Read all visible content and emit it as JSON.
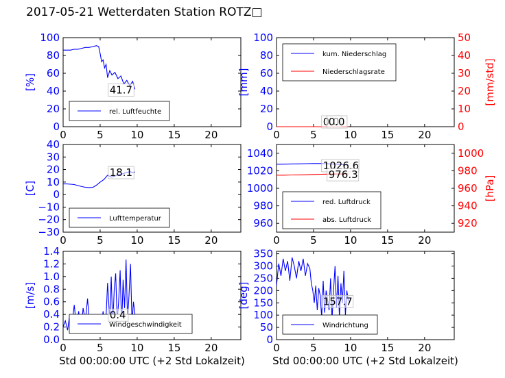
{
  "title": "2017-05-21 Wetterdaten Station ROTZ□",
  "colors": {
    "left_axis": "#0000ff",
    "right_axis": "#ff0000",
    "line1": "#0000ff",
    "line2": "#ff0000"
  },
  "chart_data": [
    {
      "id": "humidity",
      "type": "line",
      "ylabel": "[%]",
      "xlim": [
        0,
        24
      ],
      "ylim": [
        0,
        100
      ],
      "xticks": [
        "0",
        "5",
        "10",
        "15",
        "20"
      ],
      "yticks": [
        "0",
        "20",
        "40",
        "60",
        "80",
        "100"
      ],
      "legend_loc": "lower-left",
      "annotation": "41.7",
      "series": [
        {
          "name": "rel. Luftfeuchte",
          "color": "#0000ff",
          "x": [
            0,
            0.5,
            1,
            1.5,
            2,
            2.5,
            3,
            3.5,
            4,
            4.5,
            4.8,
            5.0,
            5.2,
            5.4,
            5.6,
            5.8,
            6.0,
            6.3,
            6.6,
            7.0,
            7.4,
            7.8,
            8.2,
            8.6,
            9.0,
            9.4,
            9.7
          ],
          "y": [
            86,
            86,
            86,
            87,
            87,
            88,
            89,
            89,
            90,
            91,
            90,
            82,
            73,
            75,
            66,
            70,
            55,
            63,
            58,
            61,
            54,
            57,
            48,
            52,
            46,
            51,
            42
          ]
        }
      ]
    },
    {
      "id": "precipitation",
      "type": "line",
      "ylabel": "[mm]",
      "ylabel_right": "[mm/std]",
      "xlim": [
        0,
        24
      ],
      "ylim": [
        0,
        100
      ],
      "ylim_right": [
        0,
        50
      ],
      "xticks": [
        "0",
        "5",
        "10",
        "15",
        "20"
      ],
      "yticks": [
        "0",
        "20",
        "40",
        "60",
        "80",
        "100"
      ],
      "yticks_right": [
        "0",
        "10",
        "20",
        "30",
        "40",
        "50"
      ],
      "legend_loc": "upper-left",
      "annotation": "0.0",
      "annotation2": "0.0",
      "series": [
        {
          "name": "kum. Niederschlag",
          "color": "#0000ff",
          "axis": "left",
          "x": [
            0,
            9.7
          ],
          "y": [
            0,
            0
          ]
        },
        {
          "name": "Niederschlagsrate",
          "color": "#ff0000",
          "axis": "right",
          "x": [
            0,
            9.7
          ],
          "y": [
            0,
            0
          ]
        }
      ]
    },
    {
      "id": "temperature",
      "type": "line",
      "ylabel": "[C]",
      "xlim": [
        0,
        24
      ],
      "ylim": [
        -30,
        40
      ],
      "xticks": [
        "0",
        "5",
        "10",
        "15",
        "20"
      ],
      "yticks": [
        "−30",
        "−20",
        "−10",
        "0",
        "10",
        "20",
        "30",
        "40"
      ],
      "legend_loc": "lower-left",
      "annotation": "18.1",
      "series": [
        {
          "name": "Lufttemperatur",
          "color": "#0000ff",
          "x": [
            0,
            0.5,
            1,
            1.5,
            2,
            2.5,
            3,
            3.5,
            4,
            4.5,
            5,
            5.5,
            6,
            6.5,
            7,
            7.5,
            8,
            8.5,
            9,
            9.5,
            9.7
          ],
          "y": [
            8.5,
            8.5,
            8.3,
            8,
            7.2,
            6.4,
            5.8,
            5.6,
            5.7,
            7.5,
            10,
            12,
            15.5,
            14,
            14.8,
            16,
            16.5,
            17.5,
            18.3,
            17.6,
            18.1
          ]
        }
      ]
    },
    {
      "id": "pressure",
      "type": "line",
      "ylabel": "",
      "ylabel_right": "[hPa]",
      "xlim": [
        0,
        24
      ],
      "ylim": [
        950,
        1050
      ],
      "ylim_right": [
        910,
        1010
      ],
      "xticks": [
        "0",
        "5",
        "10",
        "15",
        "20"
      ],
      "yticks": [
        "960",
        "980",
        "1000",
        "1020",
        "1040"
      ],
      "yticks_right": [
        "920",
        "940",
        "960",
        "980",
        "1000"
      ],
      "legend_loc": "lower-left",
      "annotation": "1026.6",
      "annotation2": "976.3",
      "series": [
        {
          "name": "red. Luftdruck",
          "color": "#0000ff",
          "axis": "left",
          "x": [
            0,
            1,
            2,
            3,
            4,
            5,
            6,
            7,
            8,
            9,
            9.7
          ],
          "y": [
            1027.5,
            1027.6,
            1027.8,
            1027.9,
            1028.1,
            1028.3,
            1028.3,
            1028.0,
            1027.6,
            1027.0,
            1026.6
          ]
        },
        {
          "name": "abs. Luftdruck",
          "color": "#ff0000",
          "axis": "right",
          "x": [
            0,
            1,
            2,
            3,
            4,
            5,
            6,
            7,
            8,
            9,
            9.7
          ],
          "y": [
            975.0,
            975.0,
            975.2,
            975.3,
            975.5,
            975.8,
            976.0,
            976.2,
            976.3,
            976.4,
            976.3
          ]
        }
      ]
    },
    {
      "id": "wind_speed",
      "type": "line",
      "ylabel": "[m/s]",
      "xlabel": "Std 00:00:00 UTC (+2 Std Lokalzeit)",
      "xlim": [
        0,
        24
      ],
      "ylim": [
        0,
        1.4
      ],
      "xticks": [
        "0",
        "5",
        "10",
        "15",
        "20"
      ],
      "yticks": [
        "0.0",
        "0.2",
        "0.4",
        "0.6",
        "0.8",
        "1.0",
        "1.2",
        "1.4"
      ],
      "legend_loc": "lower-center",
      "annotation": "0.4",
      "series": [
        {
          "name": "Windgeschwindigkeit",
          "color": "#0000ff",
          "x": [
            0,
            0.3,
            0.6,
            0.9,
            1.2,
            1.5,
            1.8,
            2.1,
            2.4,
            2.7,
            3.0,
            3.3,
            3.6,
            3.9,
            4.2,
            4.5,
            4.8,
            5.1,
            5.4,
            5.7,
            6.0,
            6.3,
            6.5,
            6.7,
            6.9,
            7.1,
            7.3,
            7.5,
            7.7,
            7.9,
            8.1,
            8.3,
            8.5,
            8.7,
            8.9,
            9.1,
            9.3,
            9.5,
            9.7
          ],
          "y": [
            0.2,
            0.3,
            0.15,
            0.4,
            0.25,
            0.55,
            0.2,
            0.45,
            0.1,
            0.5,
            0.3,
            0.65,
            0.2,
            0.4,
            0.25,
            0.15,
            0.3,
            0.2,
            0.45,
            0.1,
            0.9,
            0.3,
            1.0,
            0.2,
            0.8,
            1.05,
            0.3,
            0.6,
            1.1,
            0.2,
            0.95,
            0.5,
            1.27,
            0.3,
            0.7,
            1.2,
            0.25,
            0.6,
            0.4
          ]
        }
      ]
    },
    {
      "id": "wind_direction",
      "type": "line",
      "ylabel": "[deg]",
      "xlabel": "Std 00:00:00 UTC (+2 Std Lokalzeit)",
      "xlim": [
        0,
        24
      ],
      "ylim": [
        0,
        360
      ],
      "xticks": [
        "0",
        "5",
        "10",
        "15",
        "20"
      ],
      "yticks": [
        "0",
        "50",
        "100",
        "150",
        "200",
        "250",
        "300",
        "350"
      ],
      "legend_loc": "lower-left",
      "annotation": "157.7",
      "series": [
        {
          "name": "Windrichtung",
          "color": "#0000ff",
          "x": [
            0,
            0.3,
            0.6,
            0.9,
            1.2,
            1.5,
            1.8,
            2.1,
            2.4,
            2.7,
            3.0,
            3.3,
            3.6,
            3.9,
            4.2,
            4.5,
            4.7,
            4.9,
            5.1,
            5.3,
            5.5,
            5.7,
            5.9,
            6.1,
            6.3,
            6.5,
            6.7,
            6.9,
            7.1,
            7.3,
            7.5,
            7.7,
            7.9,
            8.1,
            8.3,
            8.5,
            8.7,
            8.9,
            9.1,
            9.3,
            9.5,
            9.7
          ],
          "y": [
            220,
            310,
            260,
            330,
            280,
            320,
            240,
            335,
            300,
            250,
            320,
            280,
            330,
            260,
            310,
            290,
            230,
            200,
            150,
            220,
            120,
            210,
            180,
            90,
            240,
            110,
            200,
            160,
            120,
            250,
            80,
            200,
            300,
            130,
            260,
            90,
            230,
            150,
            280,
            100,
            200,
            158
          ]
        }
      ]
    }
  ]
}
